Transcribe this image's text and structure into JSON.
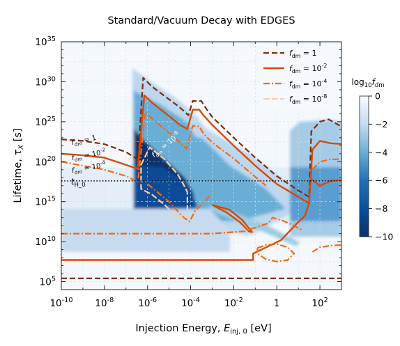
{
  "chart_data": {
    "type": "heatmap",
    "title": "Standard/Vacuum Decay with EDGES",
    "xlabel": "Injection Energy, $E_{\\mathrm{inj},0}$ [eV]",
    "ylabel": "Lifetime, $\\tau_X$ [s]",
    "x_scale": "log",
    "y_scale": "log",
    "xlim": [
      1e-10,
      1000.0
    ],
    "ylim": [
      10000.0,
      1e+35
    ],
    "x_ticks": [
      {
        "value": -10,
        "label": "10^{-10}"
      },
      {
        "value": -8,
        "label": "10^{-8}"
      },
      {
        "value": -6,
        "label": "10^{-6}"
      },
      {
        "value": -4,
        "label": "10^{-4}"
      },
      {
        "value": -2,
        "label": "10^{-2}"
      },
      {
        "value": 0,
        "label": "1"
      },
      {
        "value": 2,
        "label": "10^{2}"
      }
    ],
    "y_ticks": [
      {
        "value": 5,
        "label": "10^{5}"
      },
      {
        "value": 10,
        "label": "10^{10}"
      },
      {
        "value": 15,
        "label": "10^{15}"
      },
      {
        "value": 20,
        "label": "10^{20}"
      },
      {
        "value": 25,
        "label": "10^{25}"
      },
      {
        "value": 30,
        "label": "10^{30}"
      },
      {
        "value": 35,
        "label": "10^{35}"
      }
    ],
    "grid": true,
    "hline": {
      "log10_value": 17.6,
      "label": "t_{H_0}",
      "style": "dotted"
    },
    "colorbar": {
      "label": "log_{10}f_{dm}",
      "range": [
        -10,
        0
      ],
      "ticks": [
        0,
        -2,
        -4,
        -6,
        -8,
        -10
      ],
      "colormap": "Blues_r"
    },
    "legend": {
      "placement": "top-right",
      "entries": [
        {
          "label": "f_{dm} = 1",
          "color": "#7f2b0a",
          "dash": "8,4",
          "width": 2.2
        },
        {
          "label": "f_{dm} = 10^{-2}",
          "color": "#d94801",
          "dash": "",
          "width": 2.4
        },
        {
          "label": "f_{dm} = 10^{-4}",
          "color": "#f16913",
          "dash": "9,3,2,3",
          "width": 2.2
        },
        {
          "label": "f_{dm} = 10^{-8}",
          "color": "#fdd0a2",
          "dash": "9,3",
          "width": 2.2
        }
      ]
    },
    "annotations": [
      {
        "text": "f_{dm} = 1",
        "x": -9.5,
        "y": 22.1,
        "angle": -12
      },
      {
        "text": "f_{dm} = 10^{-2}",
        "x": -9.5,
        "y": 20.2,
        "angle": -10
      },
      {
        "text": "f_{dm} = 10^{-4}",
        "x": -9.5,
        "y": 18.6,
        "angle": -10
      },
      {
        "text": "f_{dm} = 10^{-8}",
        "x": -5.7,
        "y": 20.5,
        "angle": -40
      }
    ],
    "contours": [
      {
        "level": 1,
        "style": 0,
        "points": [
          [
            -10,
            22.8
          ],
          [
            -9,
            22.6
          ],
          [
            -8,
            22.2
          ],
          [
            -7,
            21.2
          ],
          [
            -6.45,
            20.3
          ],
          [
            -6.45,
            20.3
          ],
          [
            -6.2,
            30.5
          ],
          [
            -5.8,
            29.4
          ],
          [
            -5,
            27.8
          ],
          [
            -4.6,
            27.0
          ],
          [
            -4.3,
            26.3
          ],
          [
            -4.1,
            25.8
          ],
          [
            -4.1,
            25.8
          ],
          [
            -3.9,
            27.6
          ],
          [
            -3.5,
            27.6
          ],
          [
            -3.4,
            27.1
          ],
          [
            -3,
            25.6
          ],
          [
            -2,
            23.0
          ],
          [
            -1,
            20.5
          ],
          [
            0,
            18.2
          ],
          [
            1,
            16.4
          ],
          [
            1.5,
            15.6
          ],
          [
            1.5,
            15.6
          ],
          [
            1.6,
            23.8
          ],
          [
            2,
            25.0
          ],
          [
            2.4,
            25.3
          ],
          [
            2.8,
            24.7
          ],
          [
            3.1,
            24.2
          ]
        ]
      },
      {
        "level": 1,
        "style": 0,
        "points": [
          [
            -10,
            5.4
          ],
          [
            3.1,
            5.4
          ]
        ]
      },
      {
        "level": -2,
        "style": 1,
        "points": [
          [
            -10,
            21.0
          ],
          [
            -9,
            20.8
          ],
          [
            -8,
            20.5
          ],
          [
            -7,
            19.6
          ],
          [
            -6.45,
            19.1
          ],
          [
            -6.45,
            19.1
          ],
          [
            -6.15,
            28.3
          ],
          [
            -5.8,
            27.4
          ],
          [
            -5,
            25.7
          ],
          [
            -4.5,
            24.6
          ],
          [
            -4.15,
            24.1
          ],
          [
            -4.15,
            24.1
          ],
          [
            -3.9,
            26.5
          ],
          [
            -3.6,
            26.5
          ],
          [
            -3.4,
            25.8
          ],
          [
            -3,
            24.6
          ],
          [
            -2,
            22.0
          ],
          [
            -1,
            19.5
          ],
          [
            0,
            17.2
          ],
          [
            1,
            15.6
          ],
          [
            1.5,
            14.8
          ],
          [
            1.5,
            14.8
          ],
          [
            1.65,
            21.5
          ],
          [
            2,
            22.6
          ],
          [
            2.5,
            22.3
          ],
          [
            3.1,
            22.2
          ]
        ]
      },
      {
        "level": -2,
        "style": 1,
        "points": [
          [
            -10,
            7.7
          ],
          [
            -1.1,
            7.7
          ],
          [
            -1.1,
            8.5
          ],
          [
            0.2,
            10.2
          ],
          [
            0.9,
            12.2
          ],
          [
            1.3,
            13.2
          ],
          [
            1.5,
            14.8
          ]
        ]
      },
      {
        "level": -2,
        "style": 1,
        "points": [
          [
            -3,
            14.6
          ],
          [
            -2.2,
            14.0
          ],
          [
            -1.6,
            12.7
          ],
          [
            -1.3,
            11.7
          ],
          [
            -1.15,
            11.2
          ],
          [
            -1.3,
            11.3
          ],
          [
            -1.7,
            12.4
          ],
          [
            -2.3,
            13.6
          ],
          [
            -3,
            14.6
          ]
        ]
      },
      {
        "level": -2,
        "style": 1,
        "points": [
          [
            1.6,
            17.8
          ],
          [
            2,
            17.0
          ],
          [
            2.5,
            17.6
          ],
          [
            3.1,
            17.7
          ]
        ]
      },
      {
        "level": -4,
        "style": 2,
        "points": [
          [
            -10,
            20.0
          ],
          [
            -9,
            19.5
          ],
          [
            -8,
            19.0
          ],
          [
            -7,
            18.2
          ],
          [
            -6.45,
            17.5
          ],
          [
            -6.45,
            17.5
          ],
          [
            -6.1,
            26.2
          ],
          [
            -5.8,
            25.4
          ],
          [
            -5,
            23.6
          ],
          [
            -4.5,
            22.4
          ],
          [
            -4.2,
            21.6
          ],
          [
            -4.2,
            21.6
          ],
          [
            -3.9,
            24.5
          ],
          [
            -3.6,
            24.4
          ],
          [
            -3.4,
            23.5
          ],
          [
            -3,
            22.4
          ],
          [
            -2,
            20.4
          ],
          [
            -1,
            18.1
          ],
          [
            -0.5,
            17.0
          ]
        ]
      },
      {
        "level": -4,
        "style": 2,
        "points": [
          [
            -10,
            11.0
          ],
          [
            -3,
            11.0
          ],
          [
            -1.5,
            11.3
          ],
          [
            -0.4,
            12.3
          ],
          [
            -0.2,
            13.0
          ],
          [
            0.3,
            12.6
          ],
          [
            0.8,
            12.0
          ],
          [
            1.2,
            11.4
          ]
        ]
      },
      {
        "level": -4,
        "style": 2,
        "points": [
          [
            -6,
            17.2
          ],
          [
            -5,
            15.0
          ],
          [
            -4.4,
            13.2
          ],
          [
            -4.05,
            12.5
          ],
          [
            -3.8,
            13.8
          ],
          [
            -3.3,
            15.2
          ],
          [
            -3.1,
            15.8
          ]
        ]
      },
      {
        "level": -4,
        "style": 2,
        "points": [
          [
            -0.9,
            9.2
          ],
          [
            -0.5,
            9.6
          ],
          [
            0,
            9.7
          ],
          [
            0.5,
            9.3
          ],
          [
            0.8,
            8.5
          ],
          [
            0.5,
            7.7
          ],
          [
            0,
            7.5
          ],
          [
            -0.5,
            7.8
          ],
          [
            -0.9,
            8.5
          ],
          [
            -0.9,
            9.2
          ]
        ]
      },
      {
        "level": -4,
        "style": 2,
        "points": [
          [
            1.65,
            19.0
          ],
          [
            2,
            20.0
          ],
          [
            2.5,
            20.3
          ],
          [
            3.1,
            20.3
          ]
        ]
      },
      {
        "level": -4,
        "style": 2,
        "points": [
          [
            1.65,
            8.7
          ],
          [
            2,
            9.3
          ],
          [
            2.5,
            9.5
          ],
          [
            3.1,
            9.6
          ]
        ]
      },
      {
        "level": -8,
        "style": 3,
        "points": [
          [
            -6.3,
            19.6
          ],
          [
            -5.9,
            21.8
          ],
          [
            -5.2,
            20.3
          ],
          [
            -4.6,
            18.4
          ],
          [
            -4.3,
            17.0
          ],
          [
            -4.15,
            16.2
          ],
          [
            -4.15,
            13.1
          ],
          [
            -4.6,
            13.0
          ],
          [
            -5.2,
            14.6
          ],
          [
            -5.8,
            15.9
          ],
          [
            -6.3,
            16.6
          ],
          [
            -6.3,
            19.6
          ]
        ]
      }
    ]
  }
}
